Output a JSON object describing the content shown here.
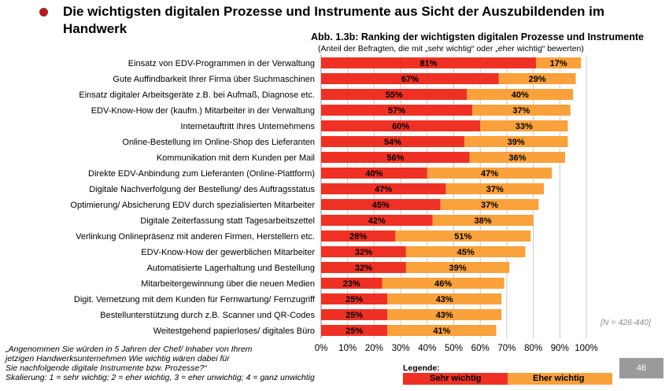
{
  "header": {
    "title": "Die wichtigsten digitalen Prozesse und Instrumente aus Sicht der Auszubildenden im Handwerk"
  },
  "colors": {
    "bullet": "#b01c24",
    "sehr_wichtig": "#ee3124",
    "eher_wichtig": "#f9a13a",
    "page_badge": "#9a9a9a"
  },
  "chart_data": {
    "type": "bar",
    "orientation": "horizontal",
    "stacked": true,
    "title": "Abb. 1.3b: Ranking der wichtigsten digitalen Prozesse und Instrumente",
    "subtitle": "(Anteil der Befragten, die mit „sehr wichtig“ oder „eher wichtig“ bewerten)",
    "categories": [
      "Einsatz von EDV-Programmen in der Verwaltung",
      "Gute Auffindbarkeit Ihrer Firma über Suchmaschinen",
      "Einsatz digitaler Arbeitsgeräte z.B. bei Aufmaß, Diagnose etc.",
      "EDV-Know-How der (kaufm.) Mitarbeiter in der Verwaltung",
      "Internetauftritt Ihres Unternehmens",
      "Online-Bestellung im Online-Shop des Lieferanten",
      "Kommunikation mit dem Kunden per Mail",
      "Direkte EDV-Anbindung zum Lieferanten (Online-Plattform)",
      "Digitale Nachverfolgung der Bestellung/ des Auftragsstatus",
      "Optimierung/ Absicherung EDV durch spezialisierten Mitarbeiter",
      "Digitale Zeiterfassung statt Tagesarbeitszettel",
      "Verlinkung Onlinepräsenz mit anderen Firmen, Herstellern etc.",
      "EDV-Know-How der gewerblichen Mitarbeiter",
      "Automatisierte Lagerhaltung und Bestellung",
      "Mitarbeitergewinnung über die neuen Medien",
      "Digit. Vernetzung mit dem Kunden für Fernwartung/ Fernzugriff",
      "Bestellunterstützung durch z.B. Scanner und QR-Codes",
      "Weitestgehend papierloses/ digitales Büro"
    ],
    "series": [
      {
        "name": "Sehr wichtig",
        "color": "#ee3124",
        "values": [
          81,
          67,
          55,
          57,
          60,
          54,
          56,
          40,
          47,
          45,
          42,
          28,
          32,
          32,
          23,
          25,
          25,
          25
        ]
      },
      {
        "name": "Eher wichtig",
        "color": "#f9a13a",
        "values": [
          17,
          29,
          40,
          37,
          33,
          39,
          36,
          47,
          37,
          37,
          38,
          51,
          45,
          39,
          46,
          43,
          43,
          41
        ]
      }
    ],
    "xlim": [
      0,
      100
    ],
    "xticks": [
      "0%",
      "10%",
      "20%",
      "30%",
      "40%",
      "50%",
      "60%",
      "70%",
      "80%",
      "90%",
      "100%"
    ],
    "grid": true,
    "legend_title": "Legende:",
    "legend_placement": "bottom"
  },
  "sample_note": "[N = 426-440]",
  "question_lines": [
    "„Angenommen Sie würden in 5 Jahren der Chef/ Inhaber von Ihrem",
    "jetzigen Handwerksunternehmen       Wie wichtig  wären dabei für",
    "Sie nachfolgende digitale Instrumente bzw. Prozesse?“",
    "Skalierung: 1 = sehr wichtig; 2 = eher wichtig, 3 = eher unwichtig; 4 = ganz unwichtig"
  ],
  "legend": {
    "title": "Legende:",
    "sehr": "Sehr wichtig",
    "eher": "Eher wichtig"
  },
  "page_number": "46"
}
